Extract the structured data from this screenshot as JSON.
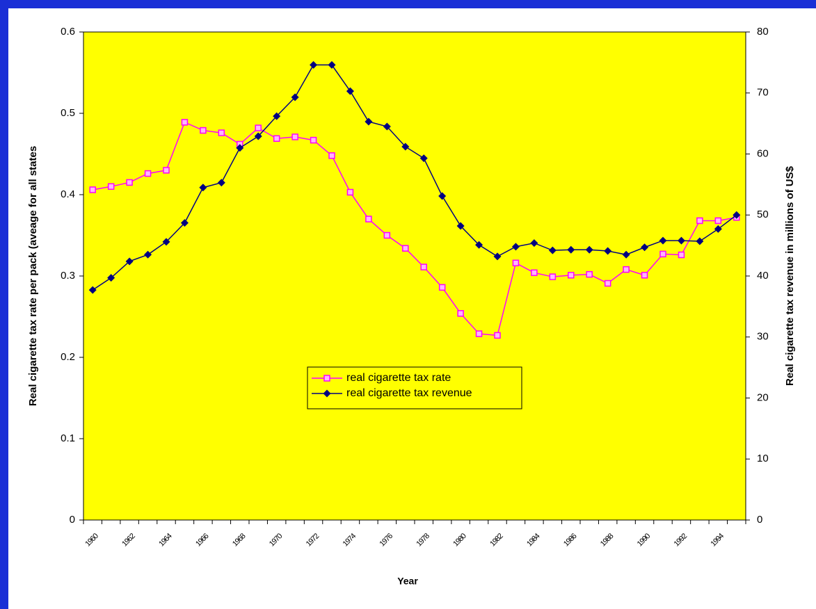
{
  "chart_data": {
    "type": "line",
    "x_label": "Year",
    "y_label": "Real cigarette tax rate per pack (aveage for all states",
    "y2_label": "Real cigarette tax revenue in millions of US$",
    "categories": [
      "1960",
      null,
      "1962",
      null,
      "1964",
      null,
      "1966",
      null,
      "1968",
      null,
      "1970",
      null,
      "1972",
      null,
      "1974",
      null,
      "1976",
      null,
      "1978",
      null,
      "1980",
      null,
      "1982",
      null,
      "1984",
      null,
      "1986",
      null,
      "1988",
      null,
      "1990",
      null,
      "1992",
      null,
      "1994",
      null
    ],
    "series": [
      {
        "name": "real cigarette tax rate",
        "color": "#ff00ff",
        "marker": "square",
        "axis": "y",
        "values": [
          0.406,
          0.41,
          0.415,
          0.426,
          0.43,
          0.489,
          0.479,
          0.476,
          0.462,
          0.482,
          0.469,
          0.471,
          0.467,
          0.448,
          0.403,
          0.37,
          0.35,
          0.334,
          0.311,
          0.286,
          0.254,
          0.229,
          0.227,
          0.316,
          0.304,
          0.299,
          0.301,
          0.302,
          0.291,
          0.308,
          0.301,
          0.327,
          0.326,
          0.368,
          0.368,
          0.372
        ]
      },
      {
        "name": "real cigarette tax revenue",
        "color": "#000080",
        "marker": "diamond",
        "axis": "y2",
        "values": [
          37.7,
          39.7,
          42.4,
          43.5,
          45.6,
          48.7,
          54.5,
          55.3,
          61.0,
          62.9,
          66.2,
          69.3,
          74.6,
          74.6,
          70.3,
          65.3,
          64.5,
          61.2,
          59.3,
          53.1,
          48.2,
          45.1,
          43.2,
          44.8,
          45.4,
          44.2,
          44.3,
          44.3,
          44.1,
          43.5,
          44.7,
          45.8,
          45.8,
          45.7,
          47.7,
          50.0
        ]
      }
    ],
    "ylim": [
      0,
      0.6
    ],
    "yticks": [
      0,
      0.1,
      0.2,
      0.3,
      0.4,
      0.5,
      0.6
    ],
    "y2lim": [
      0,
      80
    ],
    "y2ticks": [
      0,
      10,
      20,
      30,
      40,
      50,
      60,
      70,
      80
    ],
    "plot_background": "#ffff00",
    "legend_position": "center"
  }
}
